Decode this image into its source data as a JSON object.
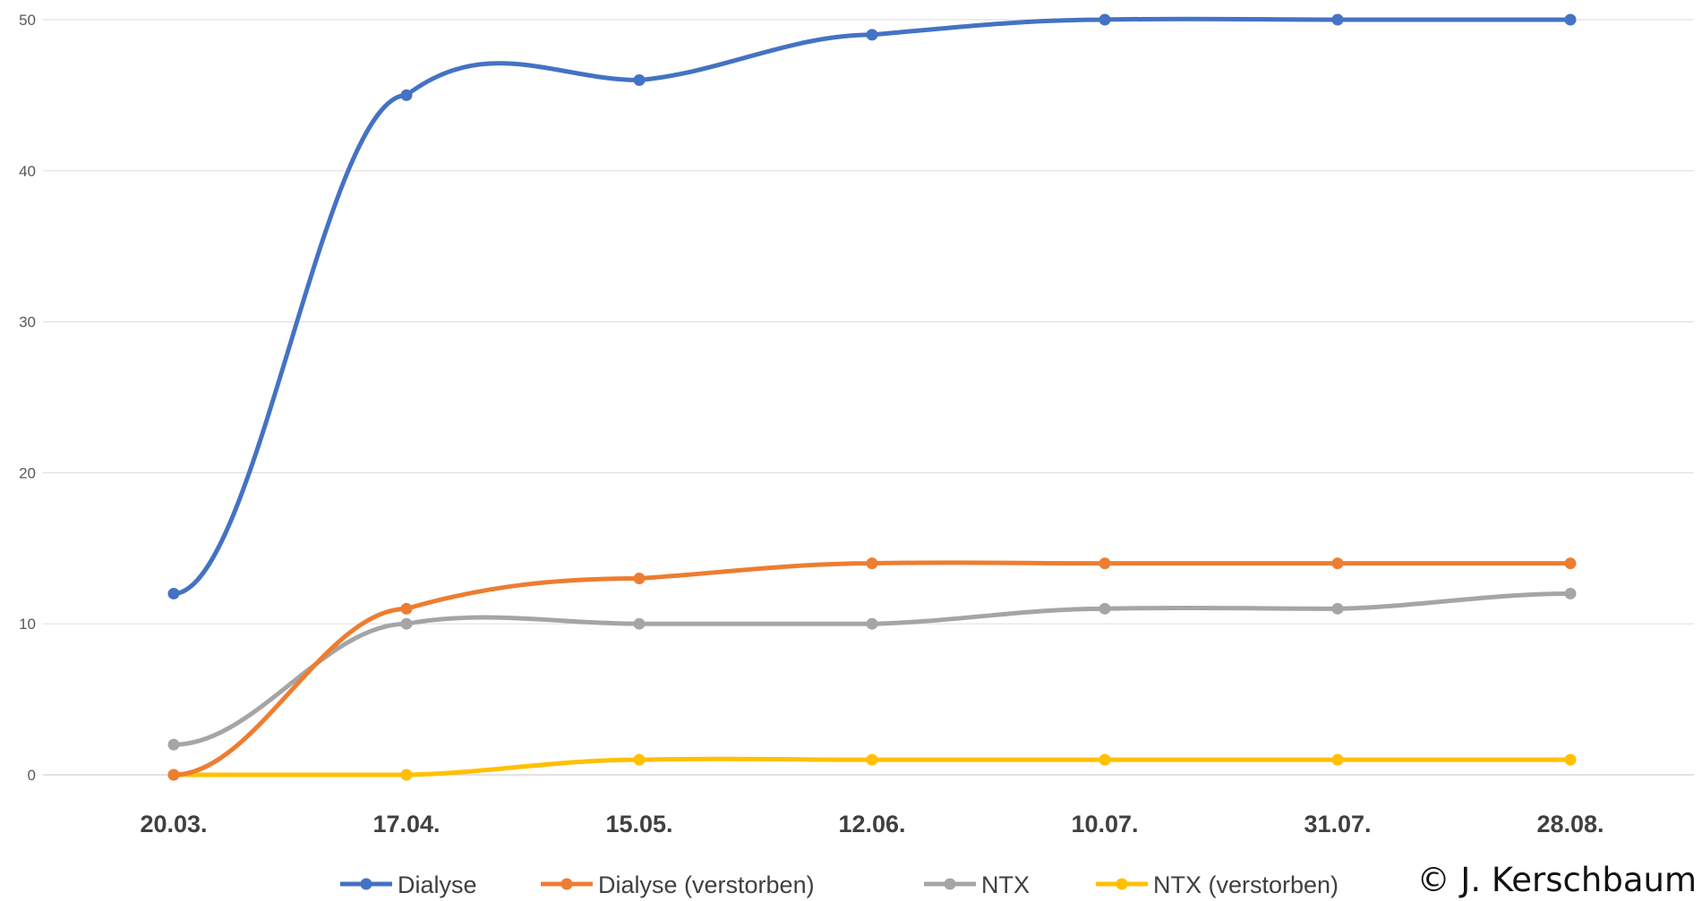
{
  "chart_data": {
    "type": "line",
    "categories": [
      "20.03.",
      "17.04.",
      "15.05.",
      "12.06.",
      "10.07.",
      "31.07.",
      "28.08."
    ],
    "ylim": [
      0,
      50
    ],
    "yticks": [
      "0",
      "10",
      "20",
      "30",
      "40",
      "50"
    ],
    "grid": true,
    "legend_position": "bottom",
    "series": [
      {
        "name": "Dialyse",
        "color": "#4472C4",
        "values": [
          12,
          45,
          46,
          49,
          50,
          50,
          50
        ]
      },
      {
        "name": "Dialyse (verstorben)",
        "color": "#ED7D31",
        "values": [
          0,
          11,
          13,
          14,
          14,
          14,
          14
        ]
      },
      {
        "name": "NTX",
        "color": "#A5A5A5",
        "values": [
          2,
          10,
          10,
          10,
          11,
          11,
          12
        ]
      },
      {
        "name": "NTX (verstorben)",
        "color": "#FFC000",
        "values": [
          0,
          0,
          1,
          1,
          1,
          1,
          1
        ]
      }
    ]
  },
  "copyright": "© J. Kerschbaum"
}
